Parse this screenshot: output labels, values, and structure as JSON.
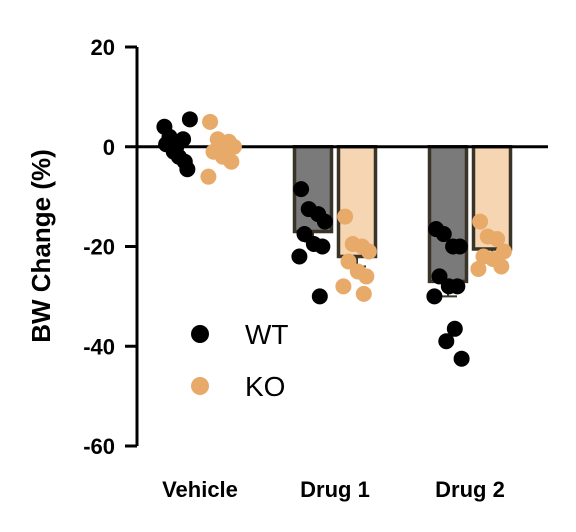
{
  "chart_data": {
    "type": "bar",
    "title": "",
    "xlabel": "",
    "ylabel": "BW Change (%)",
    "ylim": [
      -60,
      20
    ],
    "yticks": [
      20,
      0,
      -20,
      -40,
      -60
    ],
    "categories": [
      "Vehicle",
      "Drug 1",
      "Drug 2"
    ],
    "legend_position": "lower-left",
    "series": [
      {
        "name": "WT",
        "bar_color": "#7a7a7a",
        "point_color": "#000000",
        "values": [
          0,
          -17,
          -27
        ],
        "sem": [
          1,
          2,
          3
        ],
        "points": [
          [
            0.5,
            -1,
            1.5,
            5.5,
            2,
            -2,
            -4.5,
            4,
            -3,
            0
          ],
          [
            -8.5,
            -12.5,
            -13.5,
            -15,
            -17.5,
            -19.5,
            -20,
            -22,
            -30
          ],
          [
            -16.5,
            -17.5,
            -20,
            -20,
            -26,
            -28,
            -28,
            -30,
            -36.5,
            -39,
            -42.5
          ]
        ]
      },
      {
        "name": "KO",
        "bar_color": "#f6d5b3",
        "point_color": "#e8aa68",
        "values": [
          0,
          -22,
          -20.5
        ],
        "sem": [
          1,
          2,
          1
        ],
        "points": [
          [
            5,
            1.5,
            0,
            0,
            -1,
            -2,
            -3,
            -6,
            1,
            -1
          ],
          [
            -14,
            -19.5,
            -20,
            -21,
            -23,
            -25,
            -26,
            -28,
            -29.5
          ],
          [
            -15,
            -18,
            -18.5,
            -21,
            -22,
            -22.5,
            -24,
            -24.5
          ]
        ]
      }
    ]
  }
}
